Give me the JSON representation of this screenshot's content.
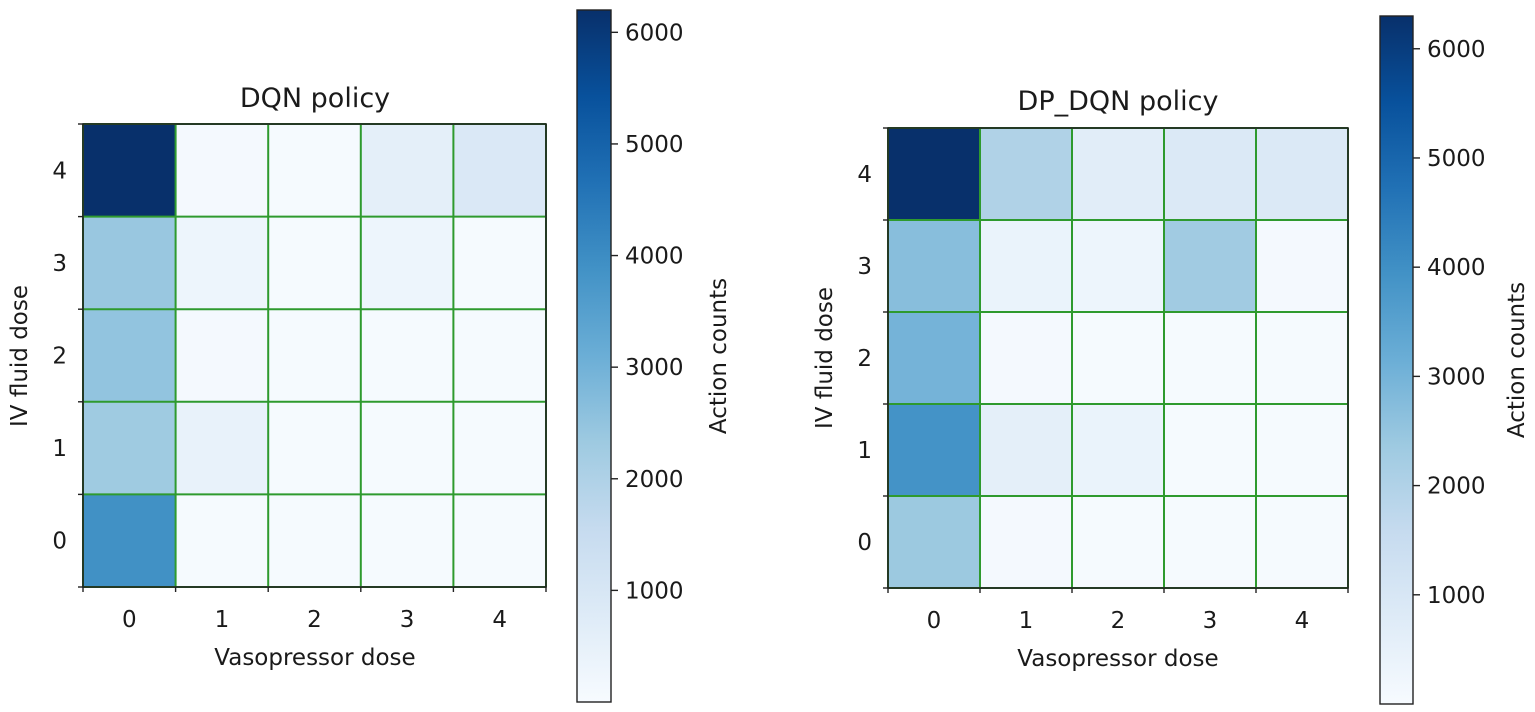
{
  "chart_data": [
    {
      "type": "heatmap",
      "title": "DQN policy",
      "xlabel": "Vasopressor dose",
      "ylabel": "IV fluid dose",
      "x_categories": [
        "0",
        "1",
        "2",
        "3",
        "4"
      ],
      "y_categories": [
        "0",
        "1",
        "2",
        "3",
        "4"
      ],
      "values_rows_y0_to_y4": [
        [
          3900,
          60,
          60,
          60,
          60
        ],
        [
          2300,
          450,
          50,
          50,
          50
        ],
        [
          2500,
          80,
          50,
          50,
          50
        ],
        [
          2400,
          300,
          50,
          300,
          50
        ],
        [
          6200,
          100,
          50,
          600,
          900
        ]
      ],
      "colorbar": {
        "label": "Action counts",
        "range": [
          0,
          6200
        ],
        "ticks": [
          "1000",
          "2000",
          "3000",
          "4000",
          "5000",
          "6000"
        ],
        "tick_values": [
          1000,
          2000,
          3000,
          4000,
          5000,
          6000
        ]
      },
      "colormap": "Blues",
      "grid_color": "#2e9a2e"
    },
    {
      "type": "heatmap",
      "title": "DP_DQN policy",
      "xlabel": "Vasopressor dose",
      "ylabel": "IV fluid dose",
      "x_categories": [
        "0",
        "1",
        "2",
        "3",
        "4"
      ],
      "y_categories": [
        "0",
        "1",
        "2",
        "3",
        "4"
      ],
      "values_rows_y0_to_y4": [
        [
          2400,
          80,
          60,
          60,
          60
        ],
        [
          3900,
          600,
          400,
          60,
          60
        ],
        [
          3000,
          80,
          60,
          60,
          60
        ],
        [
          2700,
          400,
          300,
          2300,
          100
        ],
        [
          6300,
          2000,
          700,
          900,
          900
        ]
      ],
      "colorbar": {
        "label": "Action counts",
        "range": [
          0,
          6300
        ],
        "ticks": [
          "1000",
          "2000",
          "3000",
          "4000",
          "5000",
          "6000"
        ],
        "tick_values": [
          1000,
          2000,
          3000,
          4000,
          5000,
          6000
        ]
      },
      "colormap": "Blues",
      "grid_color": "#2e9a2e"
    }
  ]
}
